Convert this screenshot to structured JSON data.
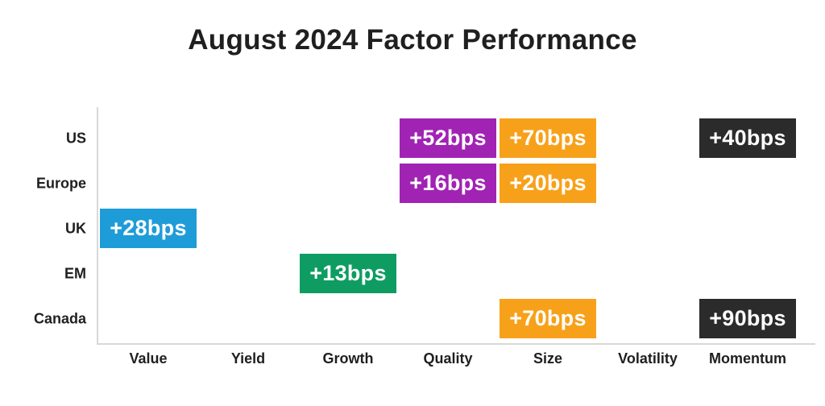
{
  "title": "August 2024 Factor Performance",
  "colors": {
    "blue": "#1E9CD8",
    "purple": "#A123B4",
    "orange": "#F7A11A",
    "green": "#0F9C62",
    "dark": "#2B2B2B",
    "axis": "#D8D8D8",
    "text": "#1F1F1F",
    "badge_text": "#FFFFFF",
    "background": "#FFFFFF"
  },
  "chart_data": {
    "type": "table",
    "title": "August 2024 Factor Performance",
    "rows": [
      "US",
      "Europe",
      "UK",
      "EM",
      "Canada"
    ],
    "columns": [
      "Value",
      "Yield",
      "Growth",
      "Quality",
      "Size",
      "Volatility",
      "Momentum"
    ],
    "unit": "bps",
    "grid": false,
    "legend": false,
    "cells": [
      {
        "row": "US",
        "column": "Quality",
        "label": "+52bps",
        "value_bps": 52,
        "color": "purple"
      },
      {
        "row": "US",
        "column": "Size",
        "label": "+70bps",
        "value_bps": 70,
        "color": "orange"
      },
      {
        "row": "US",
        "column": "Momentum",
        "label": "+40bps",
        "value_bps": 40,
        "color": "dark"
      },
      {
        "row": "Europe",
        "column": "Quality",
        "label": "+16bps",
        "value_bps": 16,
        "color": "purple"
      },
      {
        "row": "Europe",
        "column": "Size",
        "label": "+20bps",
        "value_bps": 20,
        "color": "orange"
      },
      {
        "row": "UK",
        "column": "Value",
        "label": "+28bps",
        "value_bps": 28,
        "color": "blue"
      },
      {
        "row": "EM",
        "column": "Growth",
        "label": "+13bps",
        "value_bps": 13,
        "color": "green"
      },
      {
        "row": "Canada",
        "column": "Size",
        "label": "+70bps",
        "value_bps": 70,
        "color": "orange"
      },
      {
        "row": "Canada",
        "column": "Momentum",
        "label": "+90bps",
        "value_bps": 90,
        "color": "dark"
      }
    ]
  }
}
